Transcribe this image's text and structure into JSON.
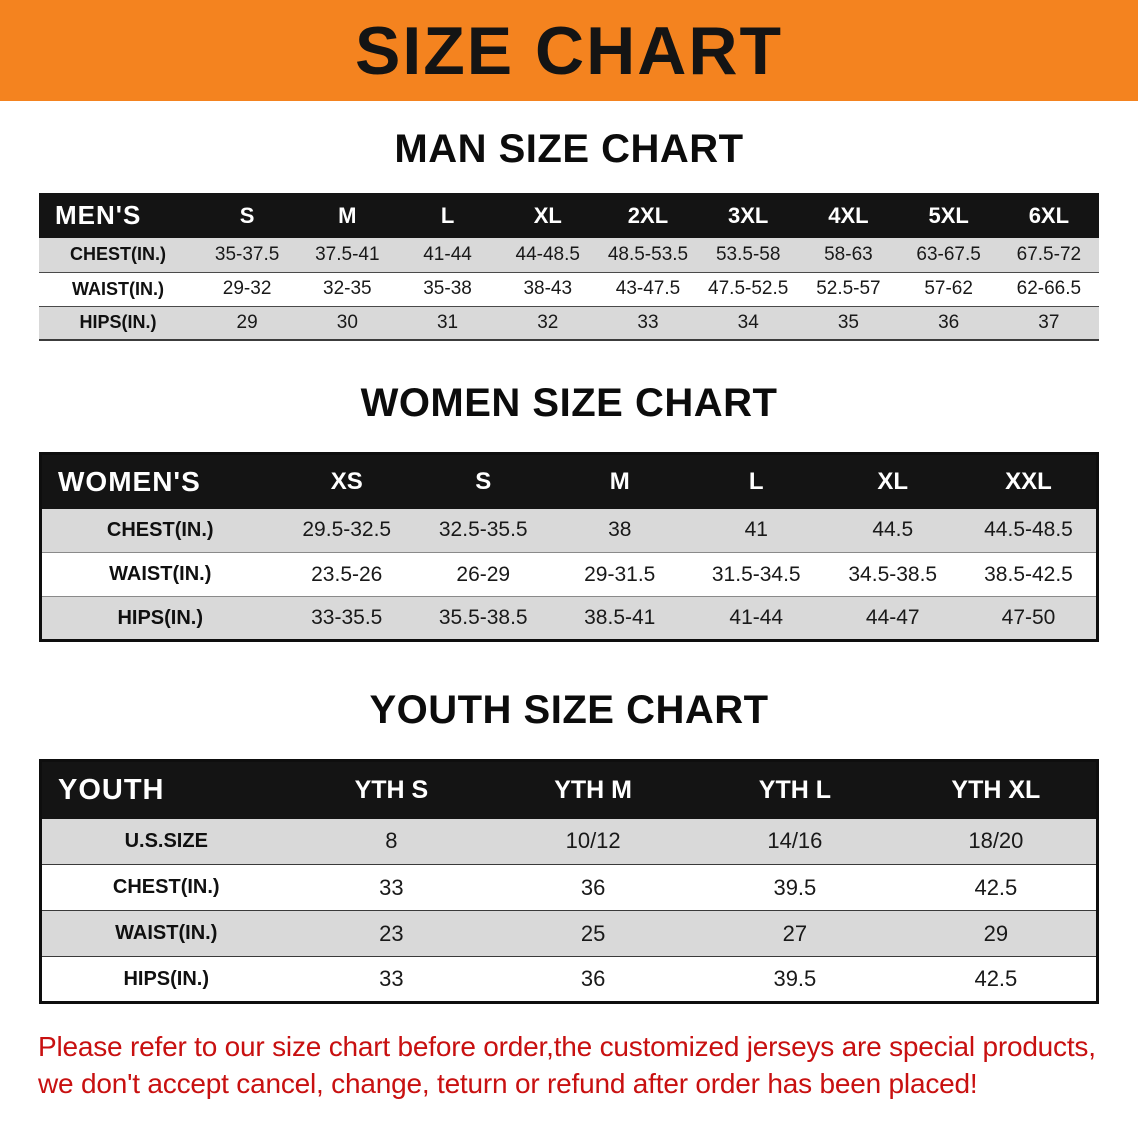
{
  "banner": {
    "title": "SIZE CHART"
  },
  "colors": {
    "banner_bg": "#f4831f",
    "header_bg": "#141414",
    "row_gray": "#d9d9d9",
    "disclaimer_red": "#c81010"
  },
  "sections": [
    {
      "heading": "MAN SIZE CHART",
      "table": {
        "corner": "MEN'S",
        "columns": [
          "S",
          "M",
          "L",
          "XL",
          "2XL",
          "3XL",
          "4XL",
          "5XL",
          "6XL"
        ],
        "rows": [
          {
            "label": "CHEST(IN.)",
            "values": [
              "35-37.5",
              "37.5-41",
              "41-44",
              "44-48.5",
              "48.5-53.5",
              "53.5-58",
              "58-63",
              "63-67.5",
              "67.5-72"
            ]
          },
          {
            "label": "WAIST(IN.)",
            "values": [
              "29-32",
              "32-35",
              "35-38",
              "38-43",
              "43-47.5",
              "47.5-52.5",
              "52.5-57",
              "57-62",
              "62-66.5"
            ]
          },
          {
            "label": "HIPS(IN.)",
            "values": [
              "29",
              "30",
              "31",
              "32",
              "33",
              "34",
              "35",
              "36",
              "37"
            ]
          }
        ]
      }
    },
    {
      "heading": "WOMEN SIZE CHART",
      "table": {
        "corner": "WOMEN'S",
        "columns": [
          "XS",
          "S",
          "M",
          "L",
          "XL",
          "XXL"
        ],
        "rows": [
          {
            "label": "CHEST(IN.)",
            "values": [
              "29.5-32.5",
              "32.5-35.5",
              "38",
              "41",
              "44.5",
              "44.5-48.5"
            ]
          },
          {
            "label": "WAIST(IN.)",
            "values": [
              "23.5-26",
              "26-29",
              "29-31.5",
              "31.5-34.5",
              "34.5-38.5",
              "38.5-42.5"
            ]
          },
          {
            "label": "HIPS(IN.)",
            "values": [
              "33-35.5",
              "35.5-38.5",
              "38.5-41",
              "41-44",
              "44-47",
              "47-50"
            ]
          }
        ]
      }
    },
    {
      "heading": "YOUTH SIZE CHART",
      "table": {
        "corner": "YOUTH",
        "columns": [
          "YTH S",
          "YTH M",
          "YTH L",
          "YTH XL"
        ],
        "rows": [
          {
            "label": "U.S.SIZE",
            "values": [
              "8",
              "10/12",
              "14/16",
              "18/20"
            ]
          },
          {
            "label": "CHEST(IN.)",
            "values": [
              "33",
              "36",
              "39.5",
              "42.5"
            ]
          },
          {
            "label": "WAIST(IN.)",
            "values": [
              "23",
              "25",
              "27",
              "29"
            ]
          },
          {
            "label": "HIPS(IN.)",
            "values": [
              "33",
              "36",
              "39.5",
              "42.5"
            ]
          }
        ]
      }
    }
  ],
  "disclaimer": {
    "line1": "Please refer to our size chart before order,the customized jerseys are special products,",
    "line2": "we don't accept cancel, change, teturn or refund after order has been placed!"
  }
}
